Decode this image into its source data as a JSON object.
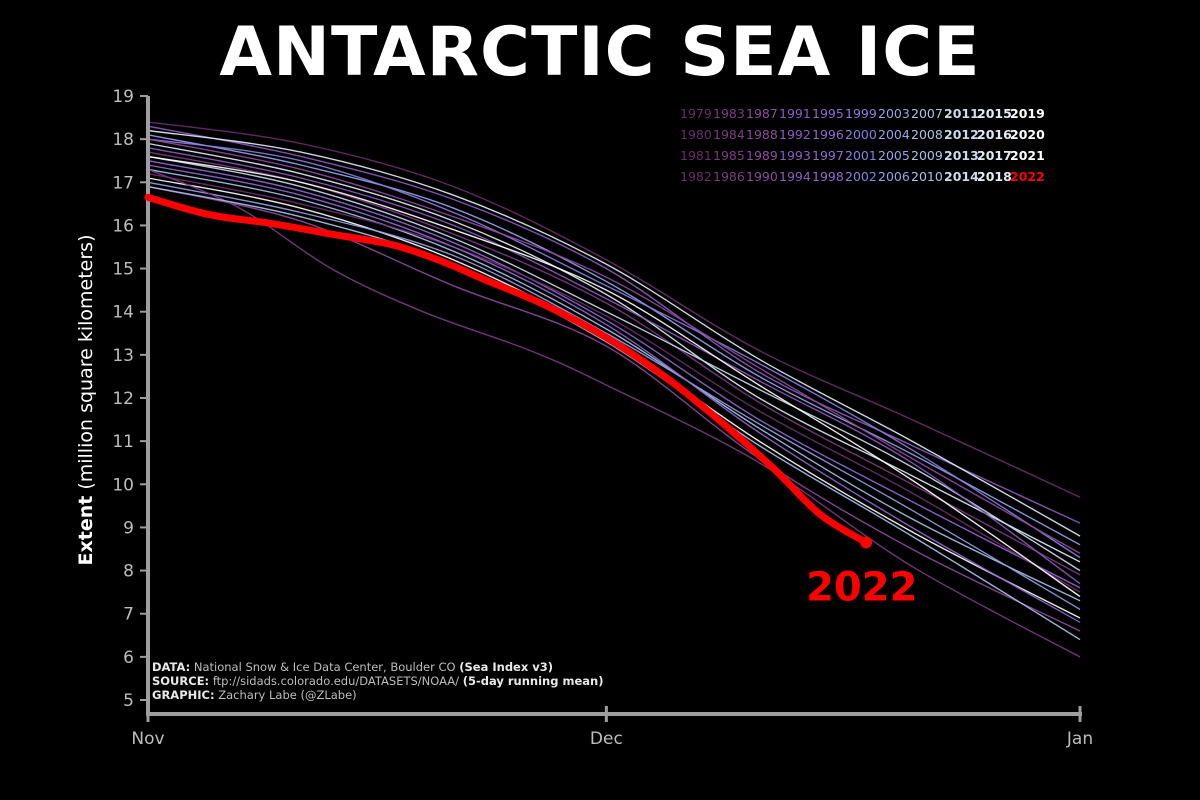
{
  "title": "ANTARCTIC SEA ICE",
  "credits": {
    "data_label": "DATA:",
    "data_text": "National Snow & Ice Data Center, Boulder CO",
    "data_extra": "(Sea Index v3)",
    "source_label": "SOURCE:",
    "source_text": "ftp://sidads.colorado.edu/DATASETS/NOAA/",
    "source_extra": "(5-day running mean)",
    "graphic_label": "GRAPHIC:",
    "graphic_text": "Zachary Labe (@ZLabe)"
  },
  "colors": {
    "background": "#000000",
    "highlight": "#ff0000",
    "axis": "#9e9e9e"
  },
  "chart_data": {
    "type": "line",
    "ylabel_bold": "Extent",
    "ylabel_rest": "(million square kilometers)",
    "ylim": [
      5,
      19
    ],
    "yticks": [
      5,
      6,
      7,
      8,
      9,
      10,
      11,
      12,
      13,
      14,
      15,
      16,
      17,
      18,
      19
    ],
    "xlim": [
      0,
      61
    ],
    "xticks": [
      {
        "label": "Nov",
        "day": 0
      },
      {
        "label": "Dec",
        "day": 30
      },
      {
        "label": "Jan",
        "day": 61
      }
    ],
    "grid": false,
    "legend_placement": "top-right",
    "legend_years": [
      [
        "1979",
        "1983",
        "1987",
        "1991",
        "1995",
        "1999",
        "2003",
        "2007",
        "2011",
        "2015",
        "2019"
      ],
      [
        "1980",
        "1984",
        "1988",
        "1992",
        "1996",
        "2000",
        "2004",
        "2008",
        "2012",
        "2016",
        "2020"
      ],
      [
        "1981",
        "1985",
        "1989",
        "1993",
        "1997",
        "2001",
        "2005",
        "2009",
        "2013",
        "2017",
        "2021"
      ],
      [
        "1982",
        "1986",
        "1990",
        "1994",
        "1998",
        "2002",
        "2006",
        "2010",
        "2014",
        "2018",
        "2022"
      ]
    ],
    "highlight": {
      "name": "2022",
      "x": [
        0,
        4,
        8,
        12,
        16,
        19,
        22,
        26,
        30,
        34,
        38,
        41,
        44,
        47
      ],
      "y": [
        16.65,
        16.25,
        16.05,
        15.8,
        15.55,
        15.2,
        14.75,
        14.15,
        13.4,
        12.45,
        11.3,
        10.35,
        9.3,
        8.65
      ]
    },
    "series": [
      {
        "x": [
          0,
          10,
          20,
          30,
          40,
          50,
          61
        ],
        "y": [
          18.4,
          17.9,
          16.9,
          15.2,
          13.1,
          11.5,
          9.7
        ]
      },
      {
        "x": [
          0,
          10,
          20,
          30,
          40,
          50,
          61
        ],
        "y": [
          18.3,
          17.6,
          16.6,
          15.0,
          12.6,
          10.9,
          9.1
        ]
      },
      {
        "x": [
          0,
          10,
          20,
          30,
          40,
          50,
          61
        ],
        "y": [
          18.1,
          17.4,
          16.4,
          14.7,
          12.5,
          10.7,
          8.6
        ]
      },
      {
        "x": [
          0,
          10,
          20,
          30,
          40,
          50,
          61
        ],
        "y": [
          17.9,
          17.2,
          16.1,
          14.4,
          12.0,
          10.2,
          8.2
        ]
      },
      {
        "x": [
          0,
          10,
          20,
          30,
          40,
          50,
          61
        ],
        "y": [
          17.7,
          17.0,
          15.8,
          14.2,
          11.9,
          10.0,
          7.9
        ]
      },
      {
        "x": [
          0,
          10,
          20,
          30,
          40,
          50,
          61
        ],
        "y": [
          17.5,
          16.8,
          15.6,
          13.8,
          11.5,
          9.6,
          7.6
        ]
      },
      {
        "x": [
          0,
          10,
          20,
          30,
          40,
          50,
          61
        ],
        "y": [
          17.3,
          16.6,
          15.4,
          13.6,
          11.3,
          9.2,
          7.3
        ]
      },
      {
        "x": [
          0,
          10,
          20,
          30,
          40,
          50,
          61
        ],
        "y": [
          17.1,
          16.4,
          15.2,
          13.4,
          11.0,
          8.9,
          6.9
        ]
      },
      {
        "x": [
          0,
          10,
          20,
          30,
          40,
          50,
          61
        ],
        "y": [
          16.9,
          16.1,
          14.6,
          13.2,
          10.6,
          8.5,
          6.6
        ]
      },
      {
        "x": [
          0,
          10,
          20,
          30,
          40,
          50,
          61
        ],
        "y": [
          18.0,
          17.5,
          16.3,
          14.6,
          12.8,
          10.8,
          8.3
        ]
      },
      {
        "x": [
          0,
          10,
          20,
          30,
          40,
          50,
          61
        ],
        "y": [
          17.6,
          16.9,
          15.7,
          14.0,
          12.2,
          10.4,
          8.0
        ]
      },
      {
        "x": [
          0,
          10,
          20,
          30,
          40,
          50,
          61
        ],
        "y": [
          17.2,
          16.5,
          15.5,
          13.9,
          11.7,
          9.8,
          7.5
        ]
      },
      {
        "x": [
          0,
          10,
          20,
          30,
          40,
          50,
          61
        ],
        "y": [
          17.8,
          17.1,
          16.0,
          14.3,
          12.4,
          10.5,
          7.7
        ]
      },
      {
        "x": [
          0,
          10,
          20,
          30,
          40,
          50,
          61
        ],
        "y": [
          17.0,
          16.3,
          15.3,
          13.5,
          11.4,
          9.4,
          7.1
        ]
      },
      {
        "x": [
          0,
          10,
          20,
          30,
          40,
          50,
          61
        ],
        "y": [
          18.2,
          17.7,
          16.7,
          15.1,
          12.9,
          11.0,
          8.8
        ]
      },
      {
        "x": [
          0,
          6,
          12,
          18,
          25,
          30,
          40,
          50,
          61
        ],
        "y": [
          17.3,
          16.4,
          15.0,
          14.0,
          13.1,
          12.3,
          10.5,
          8.1,
          6.0
        ]
      },
      {
        "x": [
          0,
          10,
          20,
          30,
          40,
          50,
          61
        ],
        "y": [
          17.4,
          16.7,
          15.5,
          13.7,
          11.2,
          9.0,
          6.8
        ]
      },
      {
        "x": [
          0,
          10,
          20,
          30,
          40,
          50,
          61
        ],
        "y": [
          16.9,
          16.2,
          15.1,
          13.3,
          10.9,
          8.8,
          6.4
        ]
      },
      {
        "x": [
          0,
          10,
          20,
          30,
          40,
          50,
          61
        ],
        "y": [
          17.6,
          17.0,
          15.9,
          14.5,
          12.3,
          10.1,
          7.4
        ]
      },
      {
        "x": [
          0,
          10,
          20,
          30,
          40,
          50,
          61
        ],
        "y": [
          18.0,
          17.3,
          16.2,
          14.8,
          12.7,
          10.6,
          8.4
        ]
      }
    ]
  }
}
